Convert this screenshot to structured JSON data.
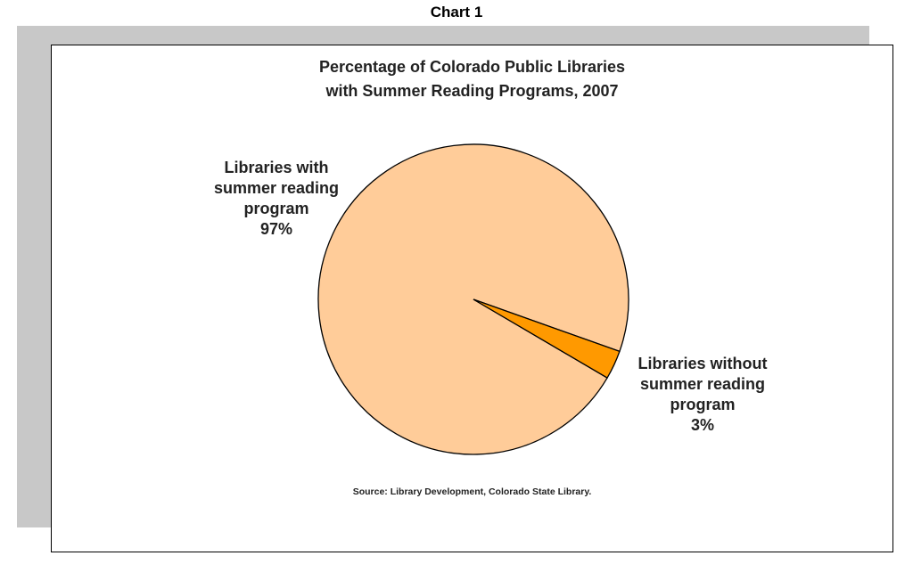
{
  "page": {
    "chart_label": "Chart 1",
    "source_note": "Source: Library Development, Colorado State Library."
  },
  "colors": {
    "shadow": "#c8c8c8",
    "slice_with": "#ffcc99",
    "slice_without": "#ff9900",
    "outline": "#000000"
  },
  "chart_data": {
    "type": "pie",
    "title": "Percentage of Colorado Public Libraries with Summer Reading Programs, 2007",
    "title_lines": [
      "Percentage of Colorado Public Libraries",
      "with Summer Reading Programs, 2007"
    ],
    "slices": [
      {
        "label": "Libraries with summer reading program",
        "label_lines": [
          "Libraries with",
          "summer reading",
          "program"
        ],
        "value": 97,
        "value_label": "97%",
        "color": "#ffcc99"
      },
      {
        "label": "Libraries without summer reading program",
        "label_lines": [
          "Libraries without",
          "summer reading",
          "program"
        ],
        "value": 3,
        "value_label": "3%",
        "color": "#ff9900"
      }
    ]
  }
}
